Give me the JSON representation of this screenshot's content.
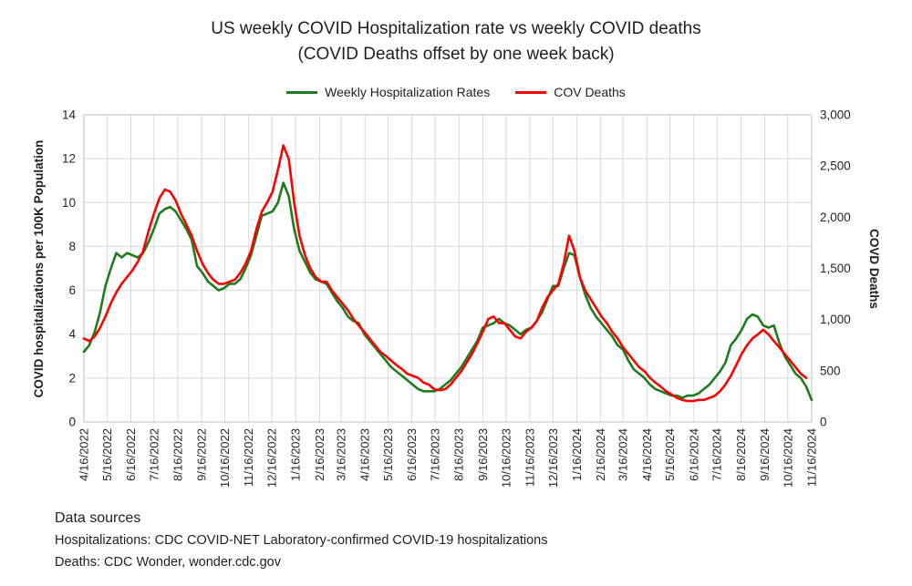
{
  "chart_data": {
    "type": "line",
    "title": "US weekly COVID Hospitalization rate vs weekly COVID deaths",
    "subtitle": "(COVID Deaths offset by one week back)",
    "legend_position": "top",
    "grid": true,
    "x_axis": {
      "start_date": "4/16/2022",
      "end_date": "11/16/2024",
      "interval": "weekly",
      "tick_labels": [
        "4/16/2022",
        "5/16/2022",
        "6/16/2022",
        "7/16/2022",
        "8/16/2022",
        "9/16/2022",
        "10/16/2022",
        "11/16/2022",
        "12/16/2022",
        "1/16/2023",
        "2/16/2023",
        "3/16/2023",
        "4/16/2023",
        "5/16/2023",
        "6/16/2023",
        "7/16/2023",
        "8/16/2023",
        "9/16/2023",
        "10/16/2023",
        "11/16/2023",
        "12/16/2023",
        "1/16/2024",
        "2/16/2024",
        "3/16/2024",
        "4/16/2024",
        "5/16/2024",
        "6/16/2024",
        "7/16/2024",
        "8/16/2024",
        "9/16/2024",
        "10/16/2024",
        "11/16/2024"
      ]
    },
    "y_left": {
      "label": "COVID hospitalizations  per 100K Population",
      "min": 0,
      "max": 14,
      "ticks": [
        0,
        2,
        4,
        6,
        8,
        10,
        12,
        14
      ]
    },
    "y_right": {
      "label": "COVD Deaths",
      "min": 0,
      "max": 3000,
      "tick_labels": [
        "0",
        "500",
        "1,000",
        "1,500",
        "2,000",
        "2,500",
        "3,000"
      ]
    },
    "series": [
      {
        "name": "Weekly Hospitalization Rates",
        "axis": "left",
        "color": "#1e7b1e",
        "values": [
          3.2,
          3.5,
          4.1,
          5.0,
          6.2,
          7.0,
          7.7,
          7.5,
          7.7,
          7.6,
          7.5,
          7.7,
          8.2,
          8.8,
          9.5,
          9.7,
          9.8,
          9.6,
          9.2,
          8.8,
          8.3,
          7.1,
          6.8,
          6.4,
          6.2,
          6.0,
          6.1,
          6.3,
          6.3,
          6.5,
          7.0,
          7.6,
          8.5,
          9.4,
          9.5,
          9.6,
          10.0,
          10.9,
          10.3,
          8.8,
          7.8,
          7.3,
          6.8,
          6.5,
          6.4,
          6.3,
          5.9,
          5.5,
          5.2,
          4.8,
          4.6,
          4.5,
          4.0,
          3.7,
          3.4,
          3.1,
          2.8,
          2.5,
          2.3,
          2.1,
          1.9,
          1.7,
          1.5,
          1.4,
          1.4,
          1.4,
          1.5,
          1.7,
          1.9,
          2.2,
          2.5,
          2.9,
          3.3,
          3.7,
          4.3,
          4.4,
          4.5,
          4.7,
          4.5,
          4.4,
          4.2,
          4.0,
          4.2,
          4.3,
          4.6,
          5.0,
          5.6,
          6.2,
          6.2,
          7.0,
          7.7,
          7.6,
          6.6,
          5.8,
          5.2,
          4.8,
          4.5,
          4.2,
          3.9,
          3.5,
          3.3,
          2.8,
          2.4,
          2.2,
          2.0,
          1.7,
          1.5,
          1.4,
          1.3,
          1.2,
          1.2,
          1.1,
          1.2,
          1.2,
          1.3,
          1.5,
          1.7,
          2.0,
          2.3,
          2.7,
          3.5,
          3.8,
          4.2,
          4.7,
          4.9,
          4.8,
          4.4,
          4.3,
          4.4,
          3.6,
          3.0,
          2.6,
          2.2,
          2.0,
          1.6,
          1.0
        ]
      },
      {
        "name": "COV Deaths",
        "axis": "right",
        "color": "#ff0000",
        "values": [
          815,
          790,
          835,
          920,
          1030,
          1160,
          1265,
          1350,
          1415,
          1480,
          1565,
          1670,
          1865,
          2035,
          2185,
          2270,
          2250,
          2165,
          2035,
          1930,
          1820,
          1670,
          1545,
          1455,
          1390,
          1350,
          1350,
          1370,
          1390,
          1455,
          1545,
          1670,
          1885,
          2055,
          2145,
          2250,
          2465,
          2700,
          2570,
          2145,
          1820,
          1630,
          1500,
          1415,
          1370,
          1370,
          1285,
          1220,
          1155,
          1090,
          1005,
          940,
          880,
          815,
          750,
          685,
          645,
          600,
          555,
          515,
          470,
          450,
          430,
          385,
          365,
          320,
          310,
          320,
          365,
          430,
          495,
          580,
          665,
          770,
          880,
          1005,
          1030,
          965,
          965,
          900,
          835,
          815,
          880,
          920,
          985,
          1115,
          1220,
          1285,
          1350,
          1545,
          1820,
          1670,
          1415,
          1285,
          1200,
          1115,
          1030,
          965,
          880,
          815,
          730,
          665,
          600,
          535,
          495,
          430,
          385,
          345,
          300,
          270,
          235,
          215,
          205,
          205,
          215,
          215,
          235,
          255,
          300,
          365,
          450,
          555,
          665,
          750,
          815,
          855,
          900,
          855,
          790,
          730,
          665,
          600,
          535,
          470,
          430,
          null
        ]
      }
    ],
    "colors": {
      "gridline": "#d9d9d9",
      "plot_border": "#bfbfbf",
      "tick_text": "#262626"
    }
  },
  "footer": {
    "heading": "Data sources",
    "lines": [
      "Hospitalizations: CDC COVID-NET Laboratory-confirmed COVID-19 hospitalizations",
      "Deaths: CDC Wonder, wonder.cdc.gov"
    ]
  }
}
